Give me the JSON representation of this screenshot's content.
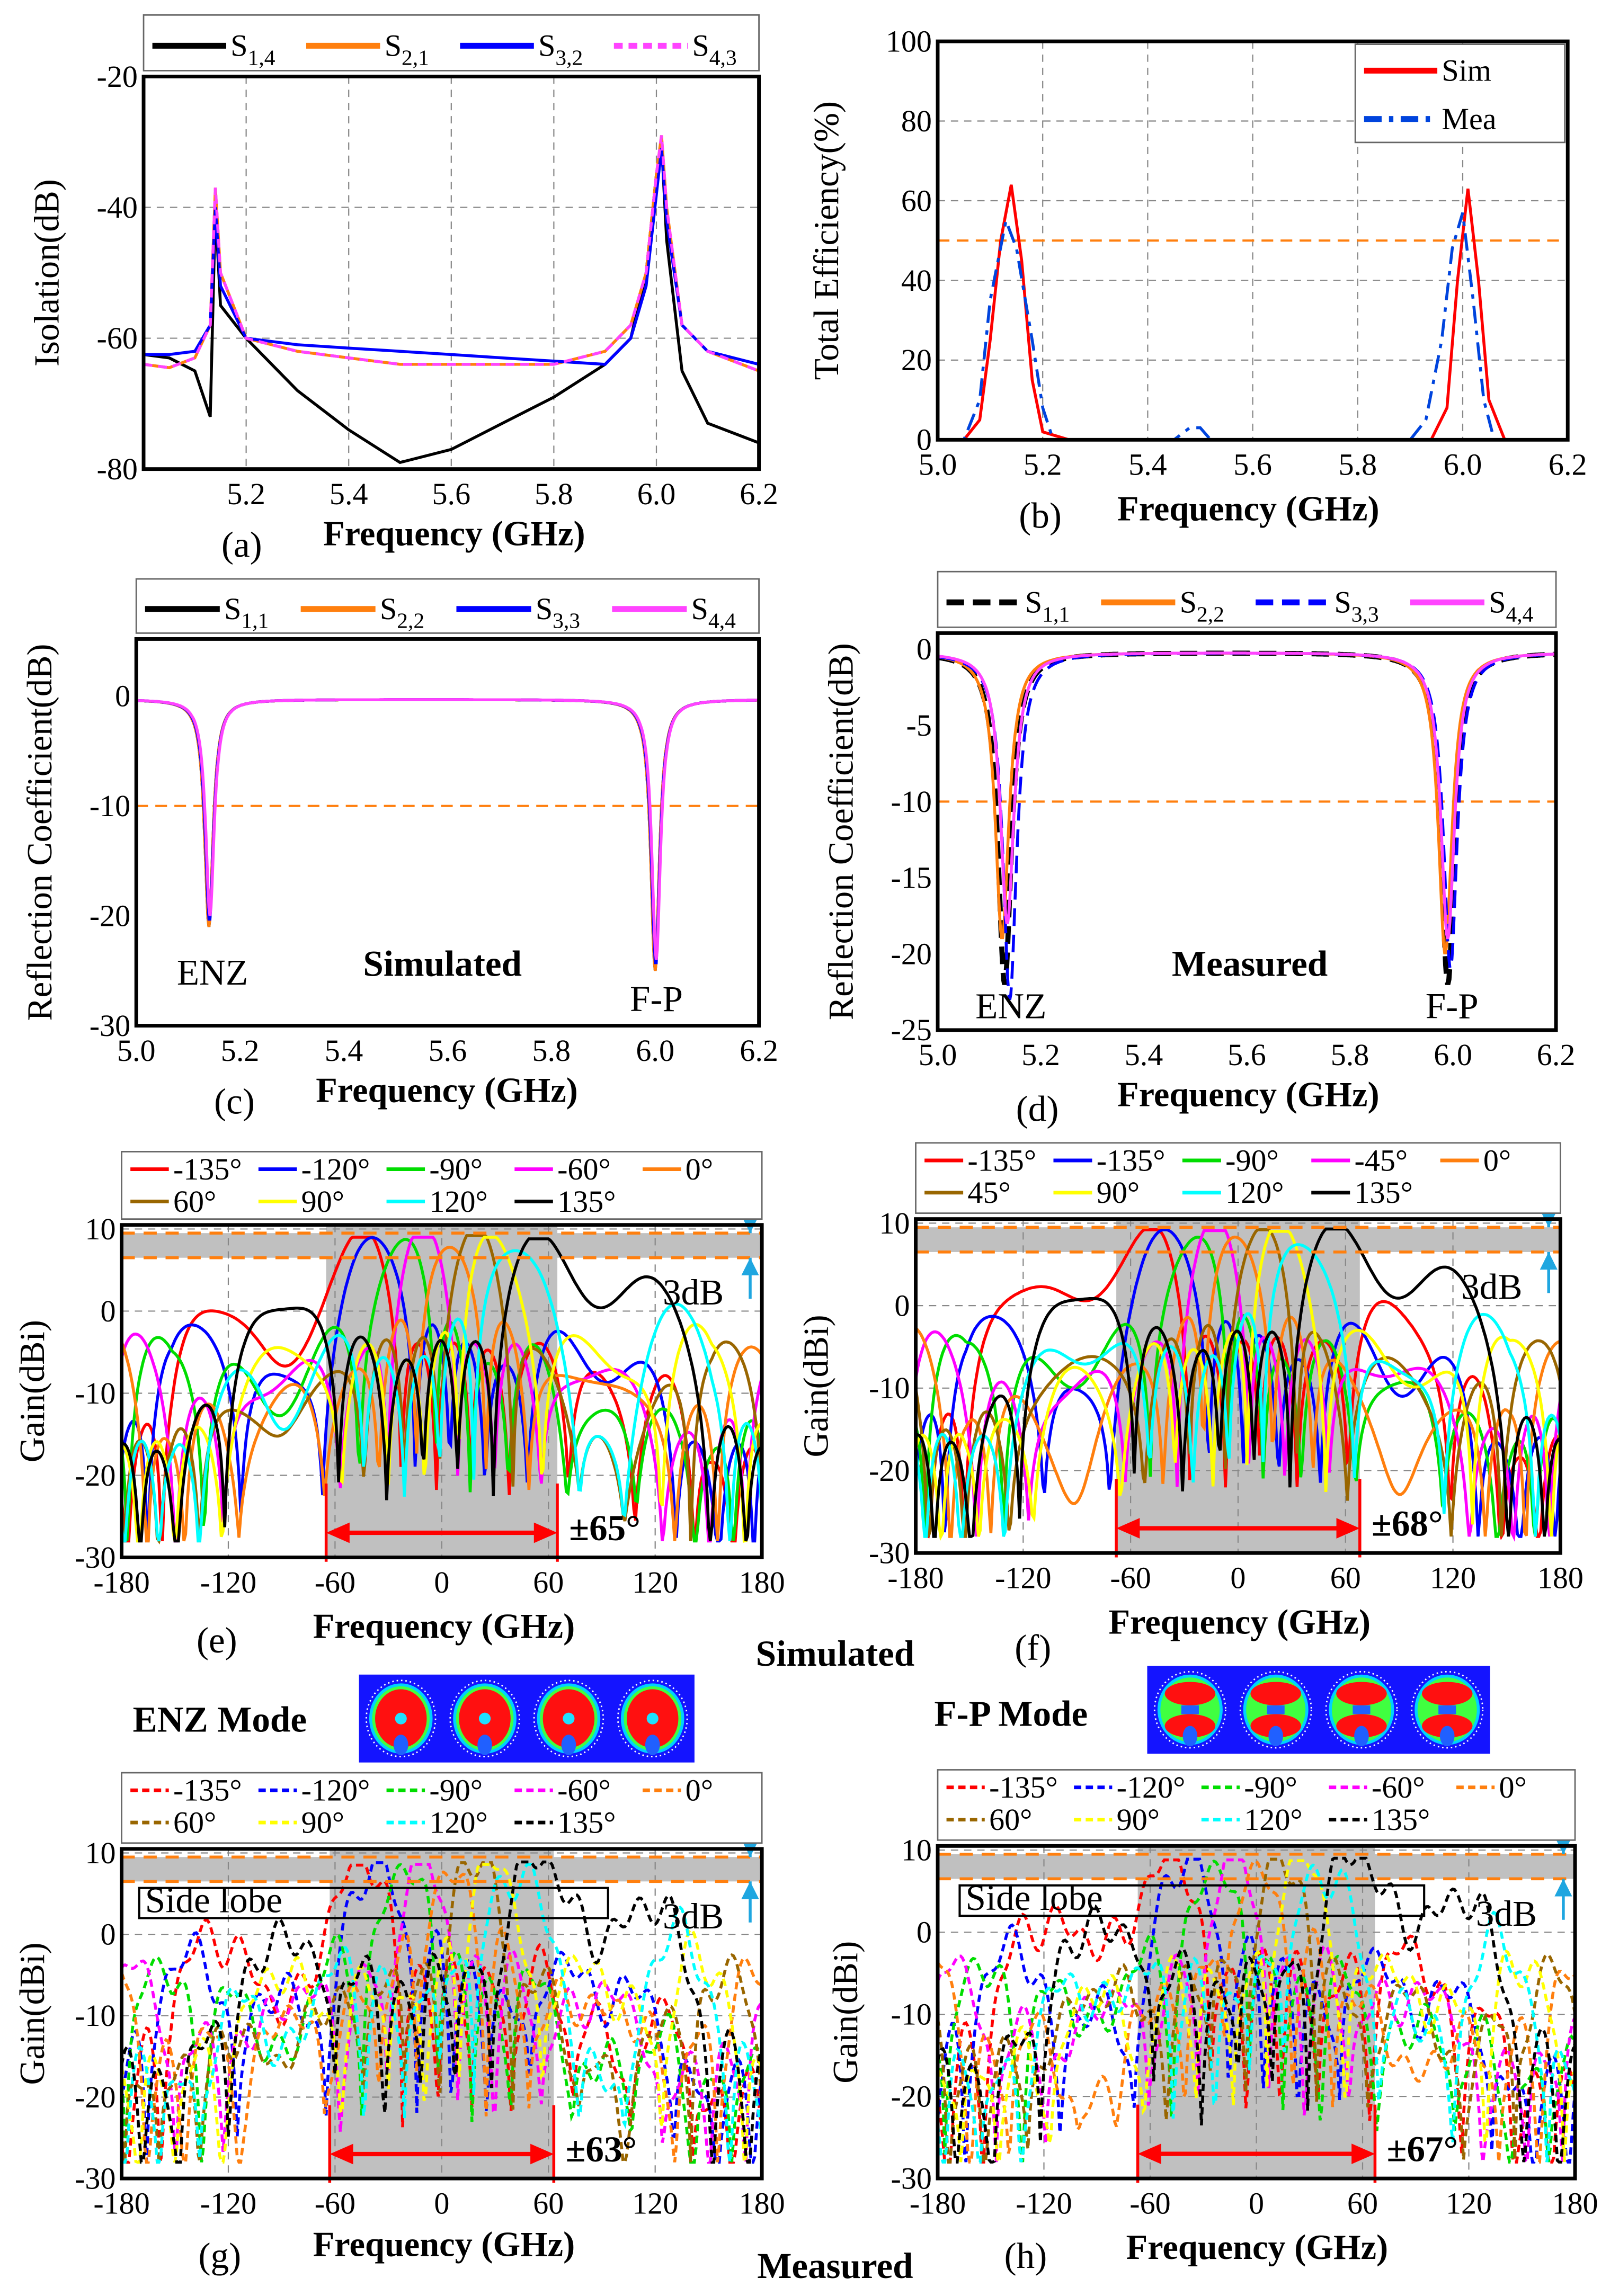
{
  "labels": {
    "simulated_top": "Simulated",
    "measured_bottom": "Measured",
    "enz_mode": "ENZ Mode",
    "fp_mode": "F-P Mode",
    "colors": {
      "simulated": "#ff0000",
      "measured": "#1a1ad0",
      "enz": "#c8209a",
      "fp": "#ff7f0e",
      "accent_blue": "#1fa6e0"
    }
  },
  "chart_data": [
    {
      "panel": "(a)",
      "type": "line",
      "title": "",
      "xlabel": "Frequency (GHz)",
      "ylabel": "Isolation(dB)",
      "xlim": [
        5.0,
        6.2
      ],
      "ylim": [
        -80,
        -20
      ],
      "grid": true,
      "xticks": [
        "5.2",
        "5.4",
        "5.6",
        "5.8",
        "6.0",
        "6.2"
      ],
      "yticks": [
        "-20",
        "-40",
        "-60",
        "-80"
      ],
      "legend": "top-outside",
      "series": [
        {
          "name": "S",
          "sub": "1,4",
          "color": "#000000",
          "dash": "",
          "x": [
            5.0,
            5.05,
            5.1,
            5.13,
            5.14,
            5.15,
            5.2,
            5.3,
            5.4,
            5.5,
            5.6,
            5.7,
            5.8,
            5.9,
            5.95,
            5.98,
            6.0,
            6.01,
            6.02,
            6.05,
            6.1,
            6.2
          ],
          "y": [
            -62.5,
            -63,
            -65,
            -72,
            -40,
            -55,
            -60,
            -68,
            -74,
            -79,
            -77,
            -73,
            -69,
            -64,
            -60,
            -50,
            -35,
            -30,
            -45,
            -65,
            -73,
            -76
          ]
        },
        {
          "name": "S",
          "sub": "2,1",
          "color": "#ff7f0e",
          "dash": "",
          "x": [
            5.0,
            5.05,
            5.1,
            5.13,
            5.14,
            5.15,
            5.2,
            5.3,
            5.4,
            5.5,
            5.6,
            5.7,
            5.8,
            5.9,
            5.95,
            5.98,
            6.0,
            6.01,
            6.02,
            6.05,
            6.1,
            6.2
          ],
          "y": [
            -64,
            -64.5,
            -63,
            -58,
            -37,
            -50,
            -60,
            -62,
            -63,
            -64,
            -64,
            -64,
            -64,
            -62,
            -58,
            -50,
            -35,
            -29,
            -40,
            -58,
            -62,
            -65
          ]
        },
        {
          "name": "S",
          "sub": "3,2",
          "color": "#0000ff",
          "dash": "",
          "x": [
            5.0,
            5.05,
            5.1,
            5.13,
            5.14,
            5.15,
            5.2,
            5.3,
            5.4,
            5.5,
            5.6,
            5.7,
            5.8,
            5.9,
            5.95,
            5.98,
            6.0,
            6.01,
            6.02,
            6.05,
            6.1,
            6.2
          ],
          "y": [
            -62.5,
            -62.5,
            -62,
            -58,
            -40,
            -52,
            -60,
            -61,
            -61.5,
            -62,
            -62.5,
            -63,
            -63.5,
            -64,
            -60,
            -52,
            -38,
            -31,
            -42,
            -58,
            -62,
            -64
          ]
        },
        {
          "name": "S",
          "sub": "4,3",
          "color": "#ff44ff",
          "dash": "6 4",
          "x": [
            5.0,
            5.05,
            5.1,
            5.13,
            5.14,
            5.15,
            5.2,
            5.3,
            5.4,
            5.5,
            5.6,
            5.7,
            5.8,
            5.9,
            5.95,
            5.98,
            6.0,
            6.01,
            6.02,
            6.05,
            6.1,
            6.2
          ],
          "y": [
            -64,
            -64.5,
            -63,
            -58,
            -37,
            -50,
            -60,
            -62,
            -63,
            -64,
            -64,
            -64,
            -64,
            -62,
            -58,
            -50,
            -35,
            -29,
            -40,
            -58,
            -62,
            -65
          ]
        }
      ]
    },
    {
      "panel": "(b)",
      "type": "line",
      "title": "",
      "xlabel": "Frequency (GHz)",
      "ylabel": "Total Efficiency(%)",
      "xlim": [
        5.0,
        6.2
      ],
      "ylim": [
        0,
        100
      ],
      "grid": true,
      "xticks": [
        "5.0",
        "5.2",
        "5.4",
        "5.6",
        "5.8",
        "6.0",
        "6.2"
      ],
      "yticks": [
        "0",
        "20",
        "40",
        "60",
        "80",
        "100"
      ],
      "legend": "top-right",
      "reference_line": 50,
      "series": [
        {
          "name": "Sim",
          "sub": "",
          "color": "#ff0000",
          "dash": "",
          "x": [
            5.0,
            5.05,
            5.08,
            5.1,
            5.12,
            5.14,
            5.16,
            5.18,
            5.2,
            5.25,
            5.9,
            5.94,
            5.97,
            5.99,
            6.01,
            6.03,
            6.05,
            6.08,
            6.2
          ],
          "y": [
            0,
            0,
            5,
            25,
            50,
            64,
            45,
            15,
            2,
            0,
            0,
            0,
            8,
            40,
            63,
            40,
            10,
            0,
            0
          ]
        },
        {
          "name": "Mea",
          "sub": "",
          "color": "#0044dd",
          "dash": "12 5 3 5",
          "x": [
            5.0,
            5.05,
            5.08,
            5.1,
            5.13,
            5.15,
            5.18,
            5.2,
            5.22,
            5.45,
            5.48,
            5.5,
            5.52,
            5.9,
            5.93,
            5.96,
            5.98,
            6.0,
            6.02,
            6.04,
            6.06,
            6.2
          ],
          "y": [
            0,
            0,
            10,
            35,
            55,
            48,
            25,
            8,
            0,
            0,
            3,
            3,
            0,
            0,
            5,
            25,
            48,
            57,
            35,
            10,
            0,
            0
          ]
        }
      ]
    },
    {
      "panel": "(c)",
      "type": "line",
      "title": "",
      "xlabel": "Frequency (GHz)",
      "ylabel": "Reflection Coefficient(dB)",
      "xlim": [
        5.0,
        6.2
      ],
      "ylim": [
        -30,
        5.2
      ],
      "grid": false,
      "xticks": [
        "5.0",
        "5.2",
        "5.4",
        "5.6",
        "5.8",
        "6.0",
        "6.2"
      ],
      "yticks": [
        "0",
        "-10",
        "-20",
        "-30"
      ],
      "legend": "top-outside",
      "reference_line": -10,
      "annotations": [
        "ENZ",
        "F-P",
        "Simulated"
      ],
      "series": [
        {
          "name": "S",
          "sub": "1,1",
          "color": "#000000",
          "dash": "",
          "baseline": -0.3,
          "resonances": [
            {
              "freq": 5.14,
              "min_db": -21
            },
            {
              "freq": 6.0,
              "min_db": -25
            }
          ]
        },
        {
          "name": "S",
          "sub": "2,2",
          "color": "#ff7f0e",
          "dash": "",
          "baseline": -0.3,
          "resonances": [
            {
              "freq": 5.14,
              "min_db": -21
            },
            {
              "freq": 6.0,
              "min_db": -25
            }
          ]
        },
        {
          "name": "S",
          "sub": "3,3",
          "color": "#0000ff",
          "dash": "",
          "baseline": -0.3,
          "resonances": [
            {
              "freq": 5.141,
              "min_db": -20.5
            },
            {
              "freq": 6.001,
              "min_db": -24.5
            }
          ]
        },
        {
          "name": "S",
          "sub": "4,4",
          "color": "#ff44ff",
          "dash": "",
          "baseline": -0.3,
          "resonances": [
            {
              "freq": 5.142,
              "min_db": -20
            },
            {
              "freq": 6.002,
              "min_db": -24
            }
          ]
        }
      ]
    },
    {
      "panel": "(d)",
      "type": "line",
      "title": "",
      "xlabel": "Frequency (GHz)",
      "ylabel": "Reflection Coefficient(dB)",
      "xlim": [
        5.0,
        6.2
      ],
      "ylim": [
        -25,
        1.06
      ],
      "grid": false,
      "xticks": [
        "5.0",
        "5.2",
        "5.4",
        "5.6",
        "5.8",
        "6.0",
        "6.2"
      ],
      "yticks": [
        "0",
        "-5",
        "-10",
        "-15",
        "-20",
        "-25"
      ],
      "legend": "top-outside",
      "reference_line": -10,
      "annotations": [
        "ENZ",
        "F-P",
        "Measured"
      ],
      "series": [
        {
          "name": "S",
          "sub": "1,1",
          "color": "#000000",
          "dash": "12 6",
          "baseline": -0.2,
          "resonances": [
            {
              "freq": 5.13,
              "min_db": -22
            },
            {
              "freq": 5.99,
              "min_db": -22
            }
          ]
        },
        {
          "name": "S",
          "sub": "2,2",
          "color": "#ff7f0e",
          "dash": "",
          "baseline": -0.2,
          "resonances": [
            {
              "freq": 5.125,
              "min_db": -19
            },
            {
              "freq": 5.985,
              "min_db": -20
            }
          ]
        },
        {
          "name": "S",
          "sub": "3,3",
          "color": "#0000ff",
          "dash": "12 6",
          "baseline": -0.2,
          "resonances": [
            {
              "freq": 5.14,
              "min_db": -23
            },
            {
              "freq": 5.995,
              "min_db": -21
            }
          ]
        },
        {
          "name": "S",
          "sub": "4,4",
          "color": "#ff44ff",
          "dash": "",
          "baseline": -0.2,
          "resonances": [
            {
              "freq": 5.135,
              "min_db": -18
            },
            {
              "freq": 5.99,
              "min_db": -19
            }
          ]
        }
      ]
    },
    {
      "panel": "(e)",
      "type": "line",
      "title": "",
      "xlabel": "Frequency (GHz)",
      "ylabel": "Gain(dBi)",
      "xlim": [
        -180,
        180
      ],
      "ylim": [
        -30,
        10.5
      ],
      "grid": true,
      "xticks": [
        "-180",
        "-120",
        "-60",
        "0",
        "60",
        "120",
        "180"
      ],
      "yticks": [
        "10",
        "0",
        "-10",
        "-20",
        "-30"
      ],
      "legend": "top-outside",
      "band_3db": [
        6.5,
        9.5
      ],
      "band_label": "3dB",
      "scan_range": 65,
      "scan_label": "±65°",
      "series": [
        {
          "name": "-135°",
          "color": "#ff0000",
          "peak_deg": -46,
          "peak_dbi": 9.0
        },
        {
          "name": "-120°",
          "color": "#0000ff",
          "peak_deg": -36,
          "peak_dbi": 9.2
        },
        {
          "name": "-90°",
          "color": "#00dd00",
          "peak_deg": -23,
          "peak_dbi": 9.2
        },
        {
          "name": "-60°",
          "color": "#ff00ff",
          "peak_deg": -10,
          "peak_dbi": 9.0
        },
        {
          "name": "0°",
          "color": "#ff7f0e",
          "peak_deg": 5,
          "peak_dbi": 9.0
        },
        {
          "name": "60°",
          "color": "#996600",
          "peak_deg": 18,
          "peak_dbi": 9.2
        },
        {
          "name": "90°",
          "color": "#ffff00",
          "peak_deg": 30,
          "peak_dbi": 9.0
        },
        {
          "name": "120°",
          "color": "#00ffff",
          "peak_deg": 40,
          "peak_dbi": 9.0
        },
        {
          "name": "135°",
          "color": "#000000",
          "peak_deg": 55,
          "peak_dbi": 8.8
        }
      ]
    },
    {
      "panel": "(f)",
      "type": "line",
      "title": "",
      "xlabel": "Frequency (GHz)",
      "ylabel": "Gain(dBi)",
      "xlim": [
        -180,
        180
      ],
      "ylim": [
        -30,
        10.5
      ],
      "grid": true,
      "xticks": [
        "-180",
        "-120",
        "-60",
        "0",
        "60",
        "120",
        "180"
      ],
      "yticks": [
        "10",
        "0",
        "-10",
        "-20",
        "-30"
      ],
      "legend": "top-outside",
      "band_3db": [
        6.5,
        9.5
      ],
      "band_label": "3dB",
      "scan_range": 68,
      "scan_label": "±68°",
      "series": [
        {
          "name": "-135°",
          "color": "#ff0000",
          "peak_deg": -52,
          "peak_dbi": 9.2
        },
        {
          "name": "-135°",
          "color": "#0000ff",
          "peak_deg": -38,
          "peak_dbi": 9.2
        },
        {
          "name": "-90°",
          "color": "#00dd00",
          "peak_deg": -25,
          "peak_dbi": 9.1
        },
        {
          "name": "-45°",
          "color": "#ff00ff",
          "peak_deg": -13,
          "peak_dbi": 9.1
        },
        {
          "name": "0°",
          "color": "#ff7f0e",
          "peak_deg": 0,
          "peak_dbi": 9.1
        },
        {
          "name": "45°",
          "color": "#996600",
          "peak_deg": 12,
          "peak_dbi": 9.2
        },
        {
          "name": "90°",
          "color": "#ffff00",
          "peak_deg": 25,
          "peak_dbi": 9.0
        },
        {
          "name": "120°",
          "color": "#00ffff",
          "peak_deg": 35,
          "peak_dbi": 9.0
        },
        {
          "name": "135°",
          "color": "#000000",
          "peak_deg": 55,
          "peak_dbi": 9.3
        }
      ]
    },
    {
      "panel": "(g)",
      "type": "line",
      "title": "",
      "xlabel": "Frequency (GHz)",
      "ylabel": "Gain(dBi)",
      "xlim": [
        -180,
        180
      ],
      "ylim": [
        -30,
        10.5
      ],
      "grid": true,
      "xticks": [
        "-180",
        "-120",
        "-60",
        "0",
        "60",
        "120",
        "180"
      ],
      "yticks": [
        "10",
        "0",
        "-10",
        "-20",
        "-30"
      ],
      "legend": "top-outside",
      "band_3db": [
        6.5,
        9.5
      ],
      "band_label": "3dB",
      "scan_range": 63,
      "scan_label": "±63°",
      "side_lobe_label": "Side lobe",
      "series": [
        {
          "name": "-135°",
          "color": "#ff0000",
          "peak_deg": -45,
          "peak_dbi": 8.5
        },
        {
          "name": "-120°",
          "color": "#0000ff",
          "peak_deg": -35,
          "peak_dbi": 8.8
        },
        {
          "name": "-90°",
          "color": "#00dd00",
          "peak_deg": -22,
          "peak_dbi": 8.8
        },
        {
          "name": "-60°",
          "color": "#ff00ff",
          "peak_deg": -10,
          "peak_dbi": 8.6
        },
        {
          "name": "0°",
          "color": "#ff7f0e",
          "peak_deg": 5,
          "peak_dbi": 8.7
        },
        {
          "name": "60°",
          "color": "#996600",
          "peak_deg": 18,
          "peak_dbi": 8.8
        },
        {
          "name": "90°",
          "color": "#ffff00",
          "peak_deg": 30,
          "peak_dbi": 8.6
        },
        {
          "name": "120°",
          "color": "#00ffff",
          "peak_deg": 40,
          "peak_dbi": 8.6
        },
        {
          "name": "135°",
          "color": "#000000",
          "peak_deg": 53,
          "peak_dbi": 8.9
        }
      ]
    },
    {
      "panel": "(h)",
      "type": "line",
      "title": "",
      "xlabel": "Frequency (GHz)",
      "ylabel": "Gain(dBi)",
      "xlim": [
        -180,
        180
      ],
      "ylim": [
        -30,
        10.5
      ],
      "grid": true,
      "xticks": [
        "-180",
        "-120",
        "-60",
        "0",
        "60",
        "120",
        "180"
      ],
      "yticks": [
        "10",
        "0",
        "-10",
        "-20",
        "-30"
      ],
      "legend": "top-outside",
      "band_3db": [
        6.5,
        9.5
      ],
      "band_label": "3dB",
      "scan_range": 67,
      "scan_label": "±67°",
      "side_lobe_label": "Side lobe",
      "series": [
        {
          "name": "-135°",
          "color": "#ff0000",
          "peak_deg": -50,
          "peak_dbi": 8.8
        },
        {
          "name": "-120°",
          "color": "#0000ff",
          "peak_deg": -37,
          "peak_dbi": 8.9
        },
        {
          "name": "-90°",
          "color": "#00dd00",
          "peak_deg": -24,
          "peak_dbi": 8.8
        },
        {
          "name": "-60°",
          "color": "#ff00ff",
          "peak_deg": -12,
          "peak_dbi": 8.8
        },
        {
          "name": "0°",
          "color": "#ff7f0e",
          "peak_deg": 1,
          "peak_dbi": 8.8
        },
        {
          "name": "60°",
          "color": "#996600",
          "peak_deg": 13,
          "peak_dbi": 8.9
        },
        {
          "name": "90°",
          "color": "#ffff00",
          "peak_deg": 26,
          "peak_dbi": 8.7
        },
        {
          "name": "120°",
          "color": "#00ffff",
          "peak_deg": 37,
          "peak_dbi": 8.7
        },
        {
          "name": "135°",
          "color": "#000000",
          "peak_deg": 55,
          "peak_dbi": 9.0
        }
      ]
    }
  ]
}
